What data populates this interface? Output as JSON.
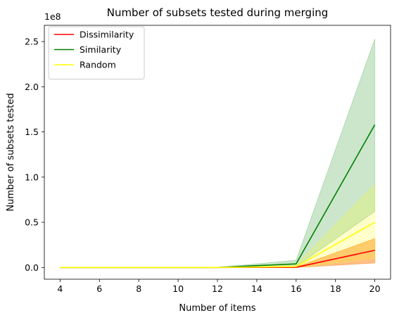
{
  "chart_data": {
    "type": "line",
    "title": "Number of subsets tested during merging",
    "xlabel": "Number of items",
    "ylabel": "Number of subsets tested",
    "y_offset_label": "1e8",
    "xlim": [
      3.2,
      20.8
    ],
    "ylim": [
      -0.13,
      2.68
    ],
    "x_ticks": [
      4,
      6,
      8,
      10,
      12,
      14,
      16,
      18,
      20
    ],
    "y_ticks": [
      0.0,
      0.5,
      1.0,
      1.5,
      2.0,
      2.5
    ],
    "y_tick_labels": [
      "0.0",
      "0.5",
      "1.0",
      "1.5",
      "2.0",
      "2.5"
    ],
    "x": [
      4,
      8,
      12,
      16,
      20
    ],
    "series": [
      {
        "name": "Dissimilarity",
        "color": "#ff0000",
        "band_color": "#ff7f0e",
        "band_opacity": 0.5,
        "values": [
          0.0,
          0.0,
          0.0,
          0.002,
          0.19
        ],
        "lower": [
          0.0,
          0.0,
          0.0,
          0.0,
          0.05
        ],
        "upper": [
          0.0,
          0.0,
          0.0,
          0.005,
          0.32
        ]
      },
      {
        "name": "Similarity",
        "color": "#008000",
        "band_color": "#008000",
        "band_opacity": 0.2,
        "values": [
          0.0,
          0.0,
          0.0,
          0.04,
          1.58
        ],
        "lower": [
          0.0,
          0.0,
          0.0,
          0.01,
          0.62
        ],
        "upper": [
          0.0,
          0.0,
          0.0,
          0.08,
          2.53
        ]
      },
      {
        "name": "Random",
        "color": "#ffff00",
        "band_color": "#ffff00",
        "band_opacity": 0.2,
        "values": [
          0.0,
          0.0,
          0.0,
          0.01,
          0.5
        ],
        "lower": [
          0.0,
          0.0,
          0.0,
          0.0,
          0.1
        ],
        "upper": [
          0.0,
          0.0,
          0.0,
          0.03,
          0.92
        ]
      }
    ],
    "legend_position": "upper-left",
    "grid": false
  }
}
